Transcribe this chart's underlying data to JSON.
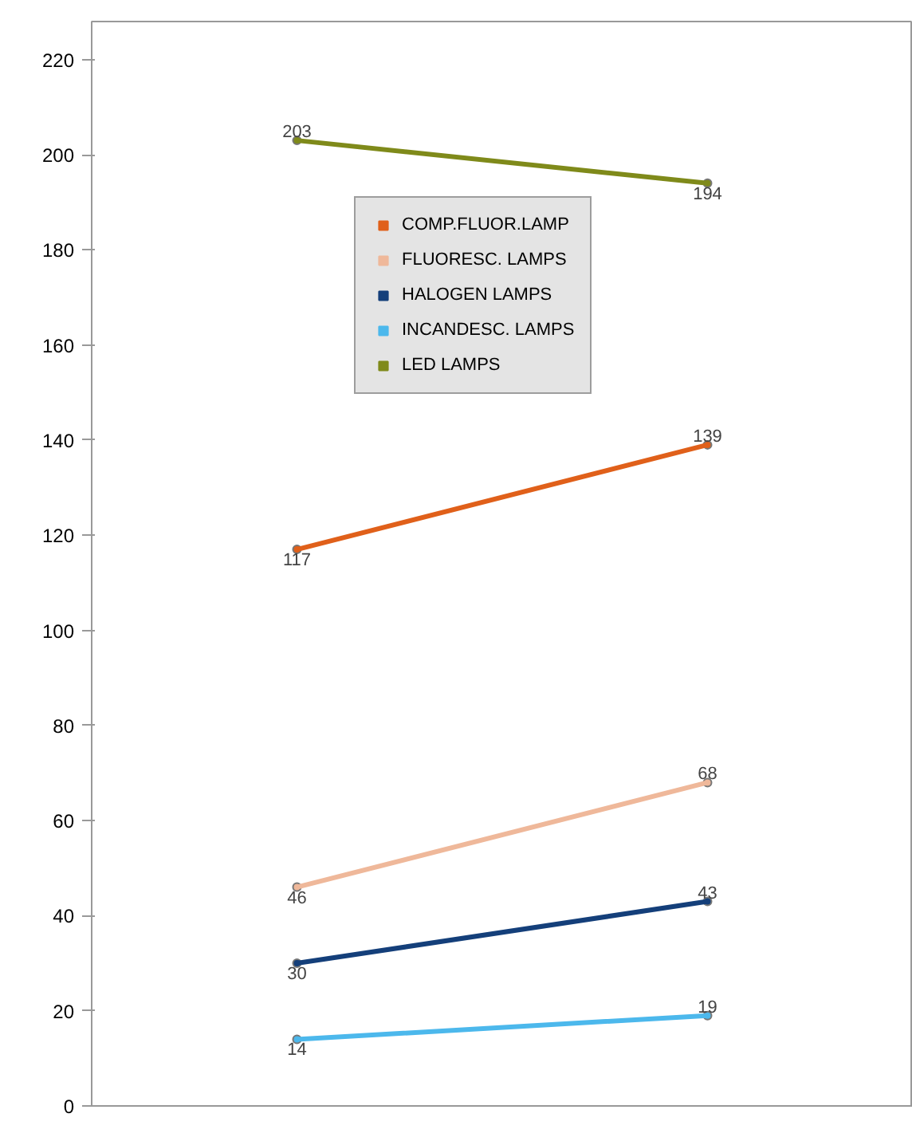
{
  "chart_data": {
    "type": "line",
    "categories": [
      null,
      null
    ],
    "ylim": [
      0,
      228
    ],
    "yticks": [
      0,
      20,
      40,
      60,
      80,
      100,
      120,
      140,
      160,
      180,
      200,
      220
    ],
    "tick_labels": "y",
    "grid": false,
    "legend": "top",
    "marker": "circle",
    "data_labels": true,
    "series": [
      {
        "name": "COMP.FLUOR.LAMP",
        "color": "#e0601a",
        "values": [
          117,
          139
        ]
      },
      {
        "name": "FLUORESC. LAMPS",
        "color": "#efb89a",
        "values": [
          46,
          68
        ]
      },
      {
        "name": "HALOGEN LAMPS",
        "color": "#143f7a",
        "values": [
          30,
          43
        ]
      },
      {
        "name": "INCANDESC. LAMPS",
        "color": "#4cb8ec",
        "values": [
          14,
          19
        ]
      },
      {
        "name": "LED LAMPS",
        "color": "#7f8a1a",
        "values": [
          203,
          194
        ]
      }
    ]
  }
}
